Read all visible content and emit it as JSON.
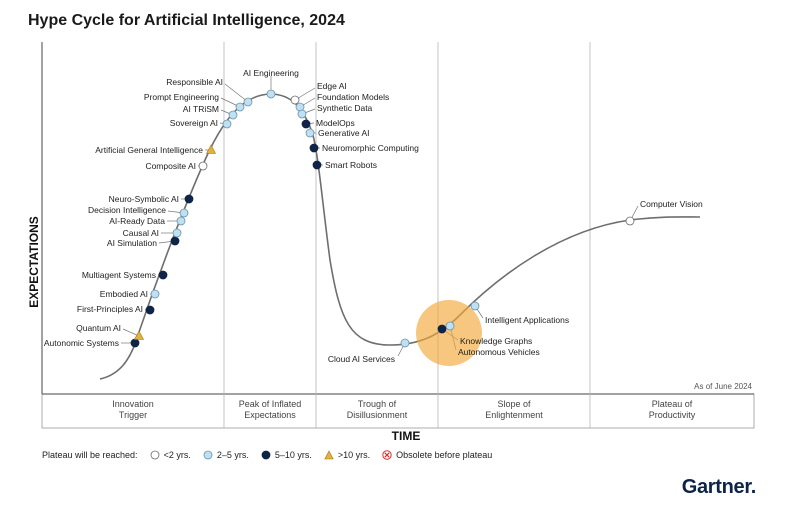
{
  "title": "Hype Cycle for Artificial Intelligence, 2024",
  "chart_data": {
    "type": "line",
    "title": "Hype Cycle for Artificial Intelligence, 2024",
    "xlabel": "TIME",
    "ylabel": "EXPECTATIONS",
    "as_of": "As of June 2024",
    "phases": [
      "Innovation\nTrigger",
      "Peak of Inflated\nExpectations",
      "Trough of\nDisillusionment",
      "Slope of\nEnlightenment",
      "Plateau of\nProductivity"
    ],
    "legend_label": "Plateau will be reached:",
    "legend": [
      {
        "key": "lt2",
        "label": "<2 yrs."
      },
      {
        "key": "2to5",
        "label": "2–5 yrs."
      },
      {
        "key": "5to10",
        "label": "5–10 yrs."
      },
      {
        "key": "gt10",
        "label": ">10 yrs."
      },
      {
        "key": "obsolete",
        "label": "Obsolete before plateau"
      }
    ],
    "colors": {
      "curve": "#6e6e6e",
      "lt2": "#ffffff",
      "2to5": "#bfe0f0",
      "5to10": "#0f2446",
      "gt10": "#e0b33a",
      "obsolete": "#d9302a",
      "highlight": "#f2a93b"
    },
    "points": [
      {
        "name": "Autonomic Systems",
        "category": "5to10"
      },
      {
        "name": "Quantum AI",
        "category": "gt10"
      },
      {
        "name": "First-Principles AI",
        "category": "5to10"
      },
      {
        "name": "Embodied AI",
        "category": "2to5"
      },
      {
        "name": "Multiagent Systems",
        "category": "5to10"
      },
      {
        "name": "AI Simulation",
        "category": "5to10"
      },
      {
        "name": "Causal AI",
        "category": "2to5"
      },
      {
        "name": "AI-Ready Data",
        "category": "2to5"
      },
      {
        "name": "Decision Intelligence",
        "category": "2to5"
      },
      {
        "name": "Neuro-Symbolic AI",
        "category": "5to10"
      },
      {
        "name": "Composite AI",
        "category": "lt2"
      },
      {
        "name": "Artificial General Intelligence",
        "category": "gt10"
      },
      {
        "name": "Sovereign AI",
        "category": "2to5"
      },
      {
        "name": "AI TRiSM",
        "category": "2to5"
      },
      {
        "name": "Prompt Engineering",
        "category": "2to5"
      },
      {
        "name": "Responsible AI",
        "category": "2to5"
      },
      {
        "name": "AI Engineering",
        "category": "2to5"
      },
      {
        "name": "Edge AI",
        "category": "lt2"
      },
      {
        "name": "Foundation Models",
        "category": "2to5"
      },
      {
        "name": "Synthetic Data",
        "category": "2to5"
      },
      {
        "name": "ModelOps",
        "category": "5to10"
      },
      {
        "name": "Generative AI",
        "category": "2to5"
      },
      {
        "name": "Neuromorphic Computing",
        "category": "5to10"
      },
      {
        "name": "Smart Robots",
        "category": "5to10"
      },
      {
        "name": "Cloud AI Services",
        "category": "2to5"
      },
      {
        "name": "Knowledge Graphs",
        "category": "5to10"
      },
      {
        "name": "Autonomous Vehicles",
        "category": "2to5"
      },
      {
        "name": "Intelligent Applications",
        "category": "2to5"
      },
      {
        "name": "Computer Vision",
        "category": "lt2"
      }
    ]
  },
  "logo": "Gartner"
}
